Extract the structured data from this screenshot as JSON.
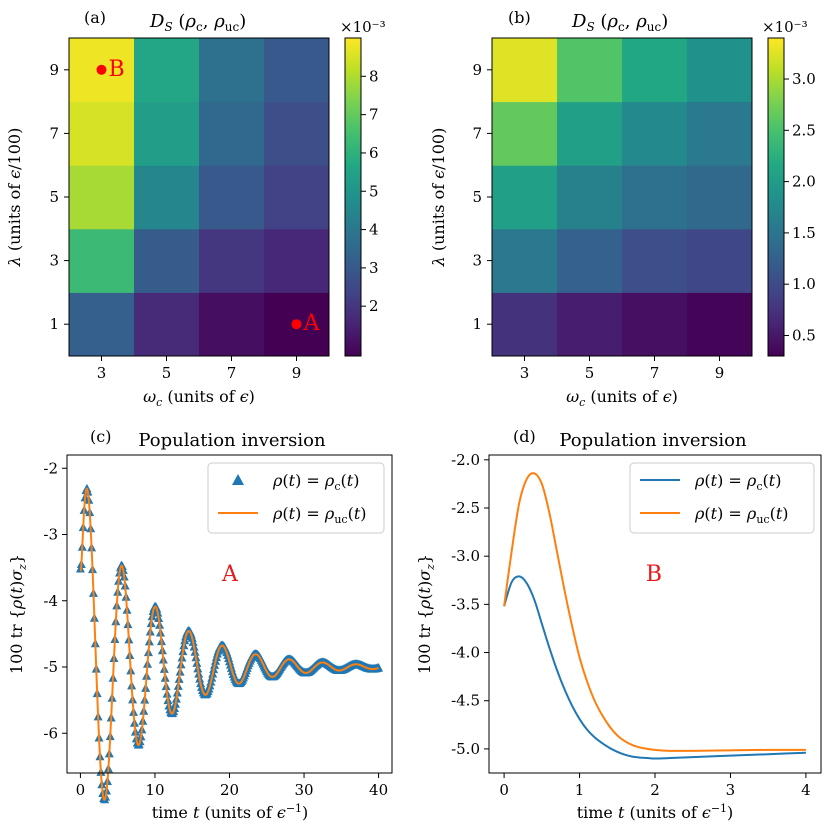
{
  "chart_data": [
    {
      "panel": "(a)",
      "type": "heatmap",
      "title": "D_S (ρ_c, ρ_uc)",
      "xlabel": "ω_c (units of ε)",
      "ylabel": "λ (units of ε/100)",
      "x": [
        3,
        5,
        7,
        9
      ],
      "y": [
        1,
        3,
        5,
        7,
        9
      ],
      "x_ticks": [
        "3",
        "5",
        "7",
        "9"
      ],
      "y_ticks": [
        "1",
        "3",
        "5",
        "7",
        "9"
      ],
      "values": [
        [
          3.2,
          1.7,
          1.0,
          0.7
        ],
        [
          6.3,
          3.1,
          2.0,
          1.6
        ],
        [
          7.9,
          4.5,
          3.0,
          2.3
        ],
        [
          8.5,
          5.3,
          3.5,
          2.7
        ],
        [
          8.8,
          5.6,
          3.8,
          3.0
        ]
      ],
      "cbar_range": [
        0.7,
        9.0
      ],
      "cbar_ticks": [
        "2",
        "3",
        "4",
        "5",
        "6",
        "7",
        "8"
      ],
      "cbar_tick_values": [
        2,
        3,
        4,
        5,
        6,
        7,
        8
      ],
      "cbar_scale": "×10⁻³",
      "markers": [
        {
          "label": "B",
          "x": 3,
          "y": 9
        },
        {
          "label": "A",
          "x": 9,
          "y": 1
        }
      ]
    },
    {
      "panel": "(b)",
      "type": "heatmap",
      "title": "D_S (ρ_c, ρ_uc)",
      "xlabel": "ω_c (units of ε)",
      "ylabel": "λ (units of ε/100)",
      "x": [
        3,
        5,
        7,
        9
      ],
      "y": [
        1,
        3,
        5,
        7,
        9
      ],
      "x_ticks": [
        "3",
        "5",
        "7",
        "9"
      ],
      "y_ticks": [
        "1",
        "3",
        "5",
        "7",
        "9"
      ],
      "values": [
        [
          0.75,
          0.55,
          0.42,
          0.33
        ],
        [
          1.55,
          1.25,
          1.05,
          0.95
        ],
        [
          2.05,
          1.65,
          1.45,
          1.35
        ],
        [
          2.65,
          2.05,
          1.75,
          1.55
        ],
        [
          3.25,
          2.55,
          2.15,
          1.85
        ]
      ],
      "cbar_range": [
        0.3,
        3.4
      ],
      "cbar_ticks": [
        "0.5",
        "1.0",
        "1.5",
        "2.0",
        "2.5",
        "3.0"
      ],
      "cbar_tick_values": [
        0.5,
        1.0,
        1.5,
        2.0,
        2.5,
        3.0
      ],
      "cbar_scale": "×10⁻³"
    },
    {
      "panel": "(c)",
      "type": "line",
      "title": "Population inversion",
      "xlabel": "time t (units of ε⁻¹)",
      "ylabel": "100 tr {ρ(t)σ_z}",
      "xlim": [
        -1.8,
        41.8
      ],
      "ylim": [
        -6.6,
        -1.8
      ],
      "x_ticks": [
        "0",
        "10",
        "20",
        "30",
        "40"
      ],
      "x_tick_values": [
        0,
        10,
        20,
        30,
        40
      ],
      "y_ticks": [
        "-2",
        "-3",
        "-4",
        "-5",
        "-6"
      ],
      "y_tick_values": [
        -2,
        -3,
        -4,
        -5,
        -6
      ],
      "annotation": "A",
      "legend": [
        "ρ(t) = ρ_c(t)",
        "ρ(t) = ρ_uc(t)"
      ],
      "model": {
        "t_start": 0,
        "t_end": 40,
        "start": -3.52,
        "final": -5.0,
        "amp0": 2.9,
        "amp_decay": 0.115,
        "omega": 1.4
      }
    },
    {
      "panel": "(d)",
      "type": "line",
      "title": "Population inversion",
      "xlabel": "time t (units of ε⁻¹)",
      "ylabel": "100 tr {ρ(t)σ_z}",
      "xlim": [
        -0.2,
        4.2
      ],
      "ylim": [
        -5.25,
        -1.95
      ],
      "x_ticks": [
        "0",
        "1",
        "2",
        "3",
        "4"
      ],
      "x_tick_values": [
        0,
        1,
        2,
        3,
        4
      ],
      "y_ticks": [
        "-2.0",
        "-2.5",
        "-3.0",
        "-3.5",
        "-4.0",
        "-4.5",
        "-5.0"
      ],
      "y_tick_values": [
        -2.0,
        -2.5,
        -3.0,
        -3.5,
        -4.0,
        -4.5,
        -5.0
      ],
      "annotation": "B",
      "legend": [
        "ρ(t) = ρ_c(t)",
        "ρ(t) = ρ_uc(t)"
      ],
      "series": [
        {
          "name": "ρ(t) = ρ_c(t)",
          "color": "#1f77b4",
          "x": [
            0,
            0.1,
            0.2,
            0.3,
            0.4,
            0.5,
            0.6,
            0.7,
            0.8,
            0.9,
            1.0,
            1.1,
            1.2,
            1.3,
            1.4,
            1.5,
            1.6,
            1.7,
            1.8,
            1.9,
            2.0,
            2.2,
            2.5,
            3.0,
            3.5,
            4.0
          ],
          "y": [
            -3.52,
            -3.27,
            -3.21,
            -3.28,
            -3.45,
            -3.7,
            -3.95,
            -4.18,
            -4.38,
            -4.55,
            -4.69,
            -4.8,
            -4.88,
            -4.94,
            -4.99,
            -5.03,
            -5.06,
            -5.08,
            -5.09,
            -5.095,
            -5.1,
            -5.095,
            -5.085,
            -5.07,
            -5.055,
            -5.04
          ]
        },
        {
          "name": "ρ(t) = ρ_uc(t)",
          "color": "#ff7f0e",
          "x": [
            0,
            0.1,
            0.2,
            0.3,
            0.4,
            0.5,
            0.6,
            0.7,
            0.8,
            0.9,
            1.0,
            1.1,
            1.2,
            1.3,
            1.4,
            1.5,
            1.6,
            1.7,
            1.8,
            1.9,
            2.0,
            2.2,
            2.5,
            3.0,
            3.5,
            4.0
          ],
          "y": [
            -3.52,
            -2.95,
            -2.45,
            -2.2,
            -2.14,
            -2.25,
            -2.55,
            -2.95,
            -3.35,
            -3.72,
            -4.05,
            -4.3,
            -4.5,
            -4.65,
            -4.77,
            -4.86,
            -4.92,
            -4.96,
            -4.985,
            -5.0,
            -5.01,
            -5.02,
            -5.02,
            -5.015,
            -5.01,
            -5.01
          ]
        }
      ]
    }
  ]
}
